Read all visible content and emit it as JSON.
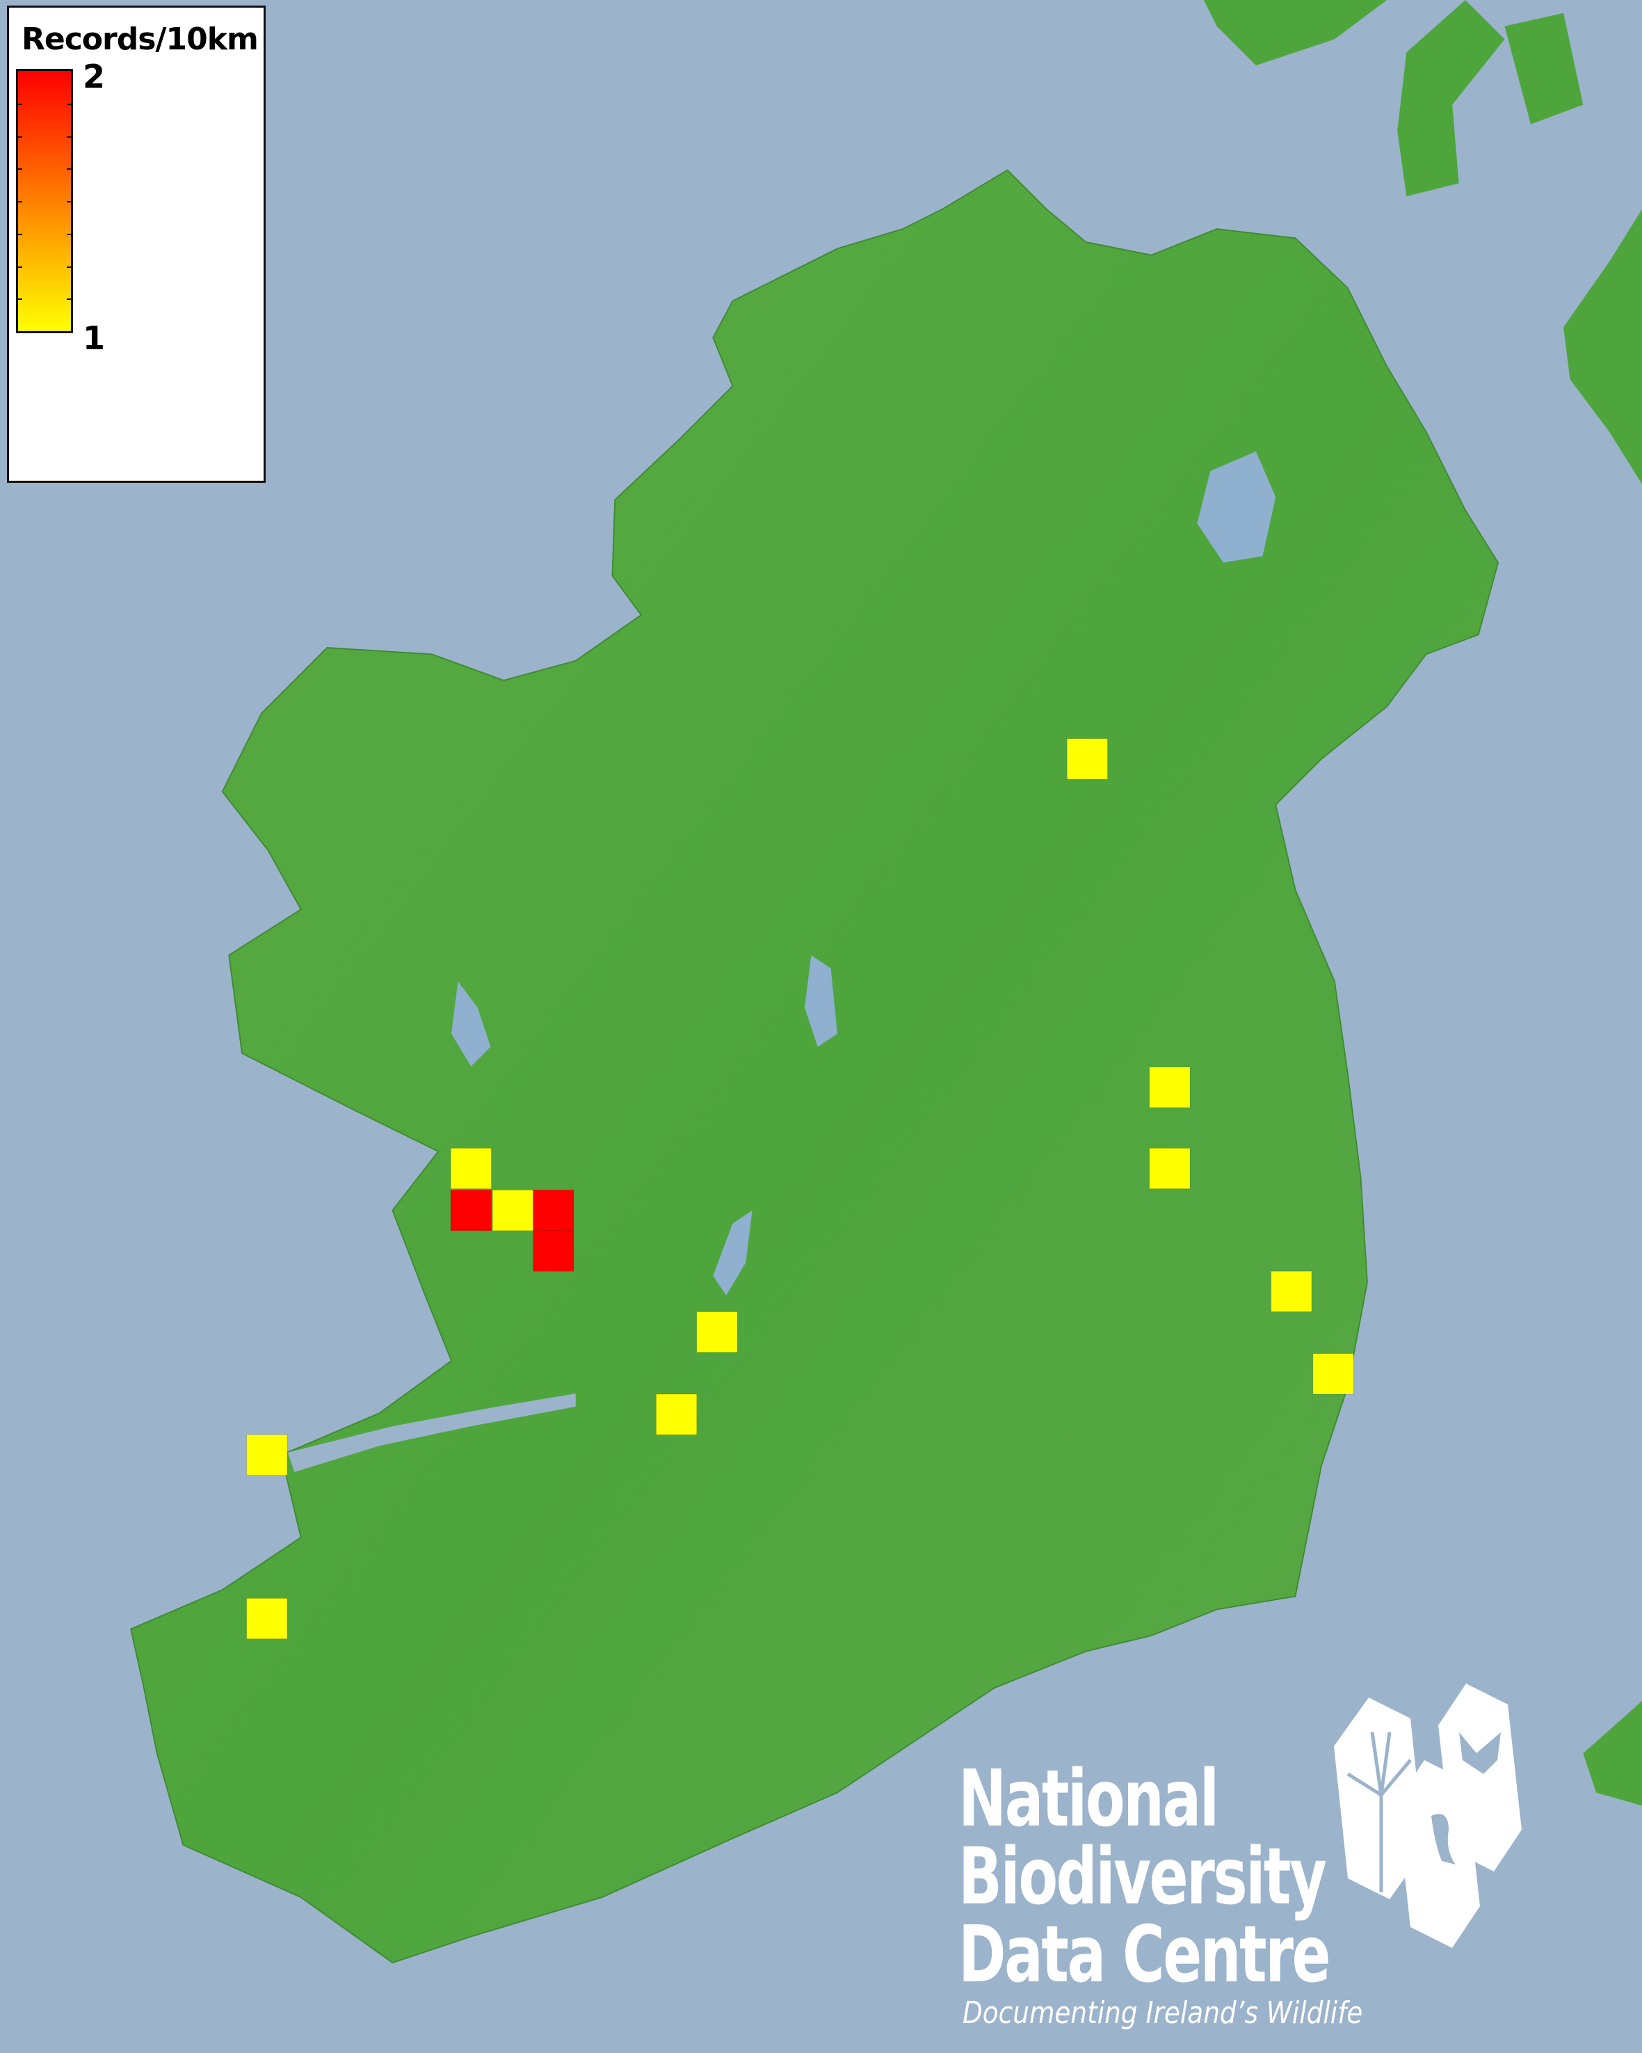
{
  "legend": {
    "title": "Records/10km",
    "max_label": "2",
    "min_label": "1",
    "range": [
      1,
      2
    ],
    "color_min": "#ffff00",
    "color_max": "#ff0000"
  },
  "records_per_square": [
    1,
    1,
    1,
    1,
    2,
    1,
    2,
    2,
    1,
    1,
    1,
    1,
    1,
    1
  ],
  "colors": {
    "sea": "#9bb3cb",
    "land": "#4ea53c",
    "water": "#8fb0cf"
  },
  "logo": {
    "line1": "National",
    "line2": "Biodiversity",
    "line3": "Data Centre",
    "tagline": "Documenting Ireland’s Wildlife",
    "icons": [
      "tree-icon",
      "butterfly-icon",
      "seahorse-icon"
    ]
  }
}
